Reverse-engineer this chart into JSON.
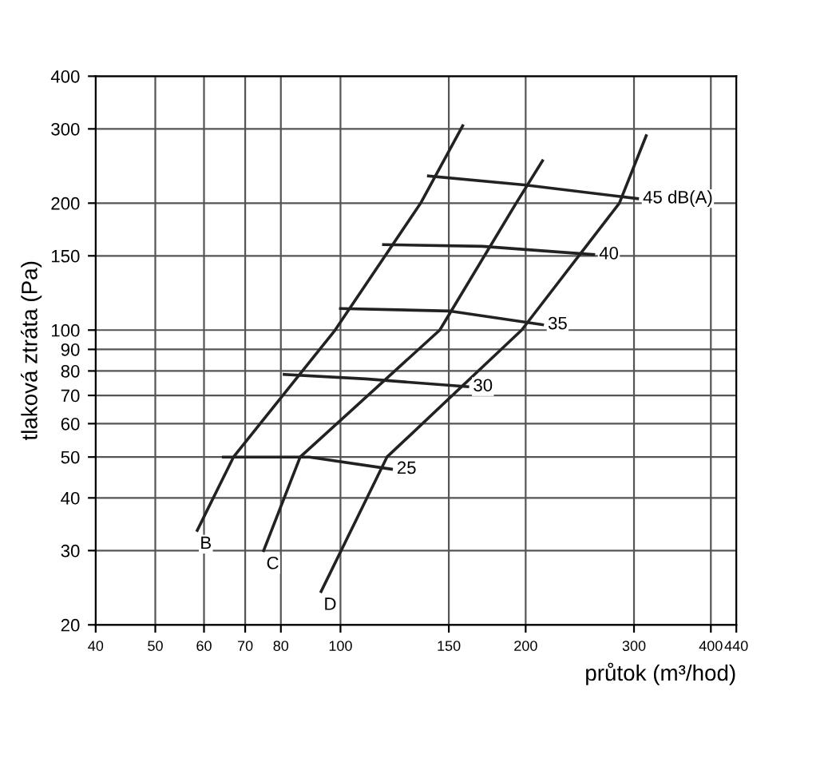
{
  "chart_data": {
    "type": "line",
    "xlabel": "průtok (m³/hod)",
    "ylabel": "tlaková ztráta (Pa)",
    "log": "xy",
    "grid": true,
    "legend": false,
    "marker": "none",
    "line_style": "solid",
    "xlim": [
      40,
      440
    ],
    "ylim": [
      20,
      400
    ],
    "xticks": [
      40,
      50,
      60,
      70,
      80,
      100,
      150,
      200,
      300,
      400,
      440
    ],
    "yticks": [
      20,
      30,
      40,
      50,
      60,
      70,
      80,
      90,
      100,
      150,
      200,
      300,
      400
    ],
    "series": [
      {
        "name": "B",
        "color": "#222222",
        "x": [
          58.5,
          67,
          98,
          135,
          158
        ],
        "values": [
          33.5,
          50,
          100,
          200,
          305
        ]
      },
      {
        "name": "C",
        "color": "#222222",
        "x": [
          75,
          86,
          145,
          193,
          213
        ],
        "values": [
          30,
          50,
          100,
          200,
          252
        ]
      },
      {
        "name": "D",
        "color": "#222222",
        "x": [
          93,
          119,
          197,
          284,
          314
        ],
        "values": [
          24,
          50,
          100,
          200,
          289
        ]
      },
      {
        "name": "25",
        "color": "#222222",
        "x": [
          64.5,
          89,
          121
        ],
        "values": [
          50,
          50,
          46.8
        ]
      },
      {
        "name": "30",
        "color": "#222222",
        "x": [
          81,
          110,
          161
        ],
        "values": [
          78.5,
          76.6,
          73.4
        ]
      },
      {
        "name": "35",
        "color": "#222222",
        "x": [
          100,
          150,
          213
        ],
        "values": [
          112.5,
          111,
          103
        ]
      },
      {
        "name": "40",
        "color": "#222222",
        "x": [
          117.5,
          170,
          258
        ],
        "values": [
          159.5,
          158,
          151
        ]
      },
      {
        "name": "45 dB(A)",
        "color": "#222222",
        "x": [
          139,
          199,
          304
        ],
        "values": [
          232,
          221,
          205
        ]
      }
    ]
  }
}
